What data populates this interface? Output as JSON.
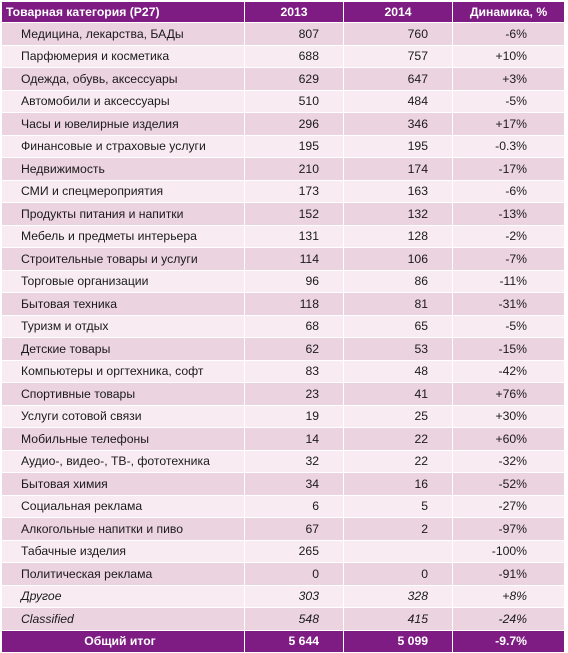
{
  "header": {
    "category": "Товарная категория (P27)",
    "y2013": "2013",
    "y2014": "2014",
    "dynamics": "Динамика, %"
  },
  "rows": [
    {
      "cat": "Медицина, лекарства, БАДы",
      "y2013": "807",
      "y2014": "760",
      "dyn": "-6%"
    },
    {
      "cat": "Парфюмерия и косметика",
      "y2013": "688",
      "y2014": "757",
      "dyn": "+10%"
    },
    {
      "cat": "Одежда, обувь, аксессуары",
      "y2013": "629",
      "y2014": "647",
      "dyn": "+3%"
    },
    {
      "cat": "Автомобили и аксессуары",
      "y2013": "510",
      "y2014": "484",
      "dyn": "-5%"
    },
    {
      "cat": "Часы и ювелирные изделия",
      "y2013": "296",
      "y2014": "346",
      "dyn": "+17%"
    },
    {
      "cat": "Финансовые и страховые услуги",
      "y2013": "195",
      "y2014": "195",
      "dyn": "-0.3%"
    },
    {
      "cat": "Недвижимость",
      "y2013": "210",
      "y2014": "174",
      "dyn": "-17%"
    },
    {
      "cat": "СМИ и спецмероприятия",
      "y2013": "173",
      "y2014": "163",
      "dyn": "-6%"
    },
    {
      "cat": "Продукты питания и напитки",
      "y2013": "152",
      "y2014": "132",
      "dyn": "-13%"
    },
    {
      "cat": "Мебель и предметы интерьера",
      "y2013": "131",
      "y2014": "128",
      "dyn": "-2%"
    },
    {
      "cat": "Строительные товары и услуги",
      "y2013": "114",
      "y2014": "106",
      "dyn": "-7%"
    },
    {
      "cat": "Торговые организации",
      "y2013": "96",
      "y2014": "86",
      "dyn": "-11%"
    },
    {
      "cat": "Бытовая техника",
      "y2013": "118",
      "y2014": "81",
      "dyn": "-31%"
    },
    {
      "cat": "Туризм и отдых",
      "y2013": "68",
      "y2014": "65",
      "dyn": "-5%"
    },
    {
      "cat": "Детские товары",
      "y2013": "62",
      "y2014": "53",
      "dyn": "-15%"
    },
    {
      "cat": "Компьютеры и оргтехника, софт",
      "y2013": "83",
      "y2014": "48",
      "dyn": "-42%"
    },
    {
      "cat": "Спортивные товары",
      "y2013": "23",
      "y2014": "41",
      "dyn": "+76%"
    },
    {
      "cat": "Услуги сотовой связи",
      "y2013": "19",
      "y2014": "25",
      "dyn": "+30%"
    },
    {
      "cat": "Мобильные телефоны",
      "y2013": "14",
      "y2014": "22",
      "dyn": "+60%"
    },
    {
      "cat": "Аудио-, видео-, ТВ-, фототехника",
      "y2013": "32",
      "y2014": "22",
      "dyn": "-32%"
    },
    {
      "cat": "Бытовая химия",
      "y2013": "34",
      "y2014": "16",
      "dyn": "-52%"
    },
    {
      "cat": "Социальная реклама",
      "y2013": "6",
      "y2014": "5",
      "dyn": "-27%"
    },
    {
      "cat": "Алкогольные напитки и пиво",
      "y2013": "67",
      "y2014": "2",
      "dyn": "-97%"
    },
    {
      "cat": "Табачные изделия",
      "y2013": "265",
      "y2014": "",
      "dyn": "-100%"
    },
    {
      "cat": "Политическая реклама",
      "y2013": "0",
      "y2014": "0",
      "dyn": "-91%"
    },
    {
      "cat": "Другое",
      "y2013": "303",
      "y2014": "328",
      "dyn": "+8%",
      "italic": true
    },
    {
      "cat": "Classified",
      "y2013": "548",
      "y2014": "415",
      "dyn": "-24%",
      "italic": true
    }
  ],
  "total": {
    "label": "Общий итог",
    "y2013": "5 644",
    "y2014": "5 099",
    "dyn": "-9.7%"
  },
  "colors": {
    "header_bg": "#7e1c84",
    "row_odd": "#ecd3e0",
    "row_even": "#f8ecf2"
  }
}
